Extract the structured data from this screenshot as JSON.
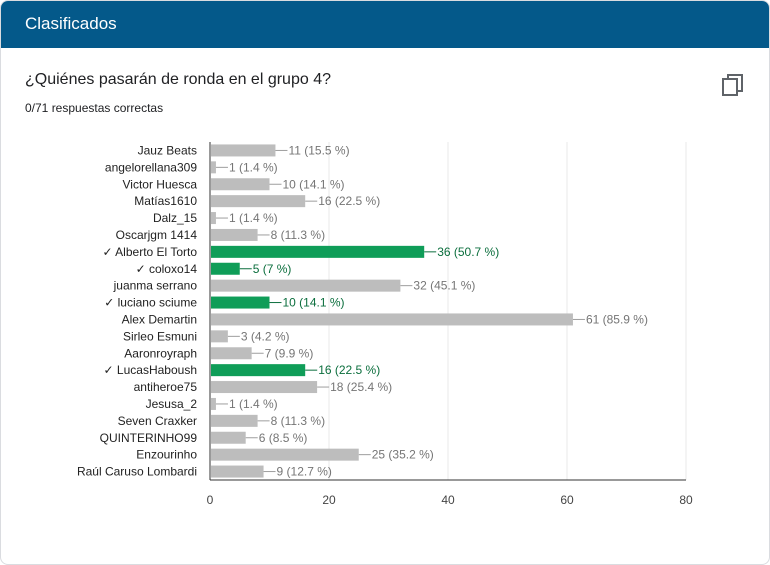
{
  "header": {
    "title": "Clasificados"
  },
  "question": {
    "title": "¿Quiénes pasarán de ronda en el grupo 4?",
    "summary": "0/71 respuestas correctas"
  },
  "colors": {
    "header_bg": "#04598a",
    "correct": "#0f9d58",
    "incorrect": "#bdbdbd",
    "correct_label": "#0b6e3d",
    "incorrect_label": "#757575"
  },
  "icons": {
    "copy": "copy-icon"
  },
  "chart_data": {
    "type": "bar",
    "orientation": "horizontal",
    "categories": [
      "Jauz Beats",
      "angelorellana309",
      "Victor Huesca",
      "Matías1610",
      "Dalz_15",
      "Oscarjgm 1414",
      "✓ Alberto El Torto",
      "✓ coloxo14",
      "juanma serrano",
      "✓ luciano sciume",
      "Alex Demartin",
      "Sirleo Esmuni",
      "Aaronroyraph",
      "✓ LucasHaboush",
      "antiheroe75",
      "Jesusa_2",
      "Seven Craxker",
      "QUINTERINHO99",
      "Enzourinho",
      "Raúl Caruso Lombardi"
    ],
    "values": [
      11,
      1,
      10,
      16,
      1,
      8,
      36,
      5,
      32,
      10,
      61,
      3,
      7,
      16,
      18,
      1,
      8,
      6,
      25,
      9
    ],
    "value_labels": [
      "11 (15.5 %)",
      "1 (1.4 %)",
      "10 (14.1 %)",
      "16 (22.5 %)",
      "1 (1.4 %)",
      "8 (11.3 %)",
      "36 (50.7 %)",
      "5 (7 %)",
      "32 (45.1 %)",
      "10 (14.1 %)",
      "61 (85.9 %)",
      "3 (4.2 %)",
      "7 (9.9 %)",
      "16 (22.5 %)",
      "18 (25.4 %)",
      "1 (1.4 %)",
      "8 (11.3 %)",
      "6 (8.5 %)",
      "25 (35.2 %)",
      "9 (12.7 %)"
    ],
    "correct": [
      false,
      false,
      false,
      false,
      false,
      false,
      true,
      true,
      false,
      true,
      false,
      false,
      false,
      true,
      false,
      false,
      false,
      false,
      false,
      false
    ],
    "xlim": [
      0,
      80
    ],
    "xticks": [
      "0",
      "20",
      "40",
      "60",
      "80"
    ],
    "grid": true
  }
}
